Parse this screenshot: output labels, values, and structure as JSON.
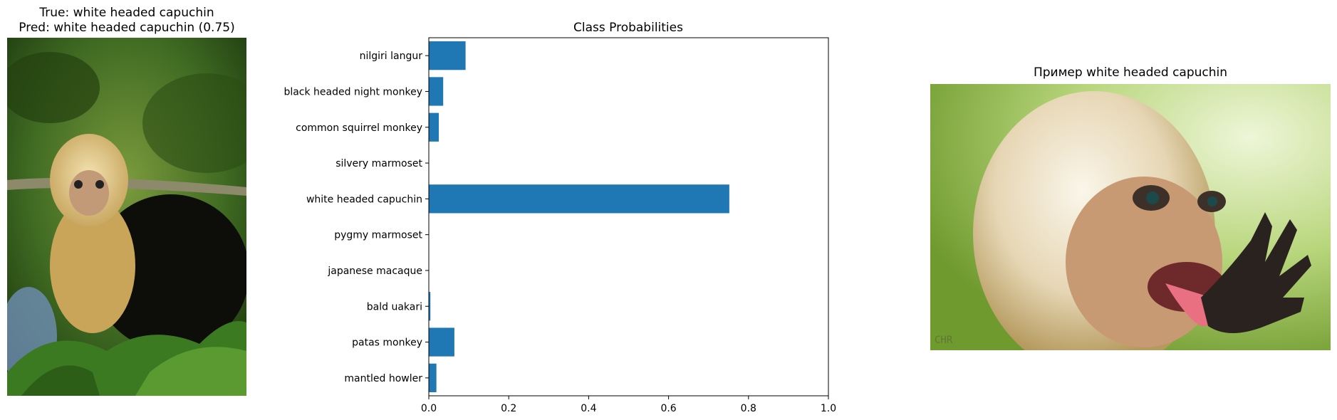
{
  "left_panel": {
    "title_line1": "True: white headed capuchin",
    "title_line2": "Pred: white headed capuchin (0.75)"
  },
  "right_panel": {
    "title": "Пример white headed capuchin",
    "watermark": "CHR"
  },
  "chart_data": {
    "type": "bar",
    "orientation": "horizontal",
    "title": "Class Probabilities",
    "xlabel": "",
    "ylabel": "",
    "xlim": [
      0,
      1.0
    ],
    "xticks": [
      "0.0",
      "0.2",
      "0.4",
      "0.6",
      "0.8",
      "1.0"
    ],
    "categories": [
      "nilgiri langur",
      "black headed night monkey",
      "common squirrel monkey",
      "silvery marmoset",
      "white headed capuchin",
      "pygmy marmoset",
      "japanese macaque",
      "bald uakari",
      "patas monkey",
      "mantled howler"
    ],
    "values": [
      0.092,
      0.036,
      0.025,
      0.0,
      0.752,
      0.0,
      0.0,
      0.004,
      0.064,
      0.019
    ],
    "bar_color": "#1f77b4",
    "grid": false
  }
}
